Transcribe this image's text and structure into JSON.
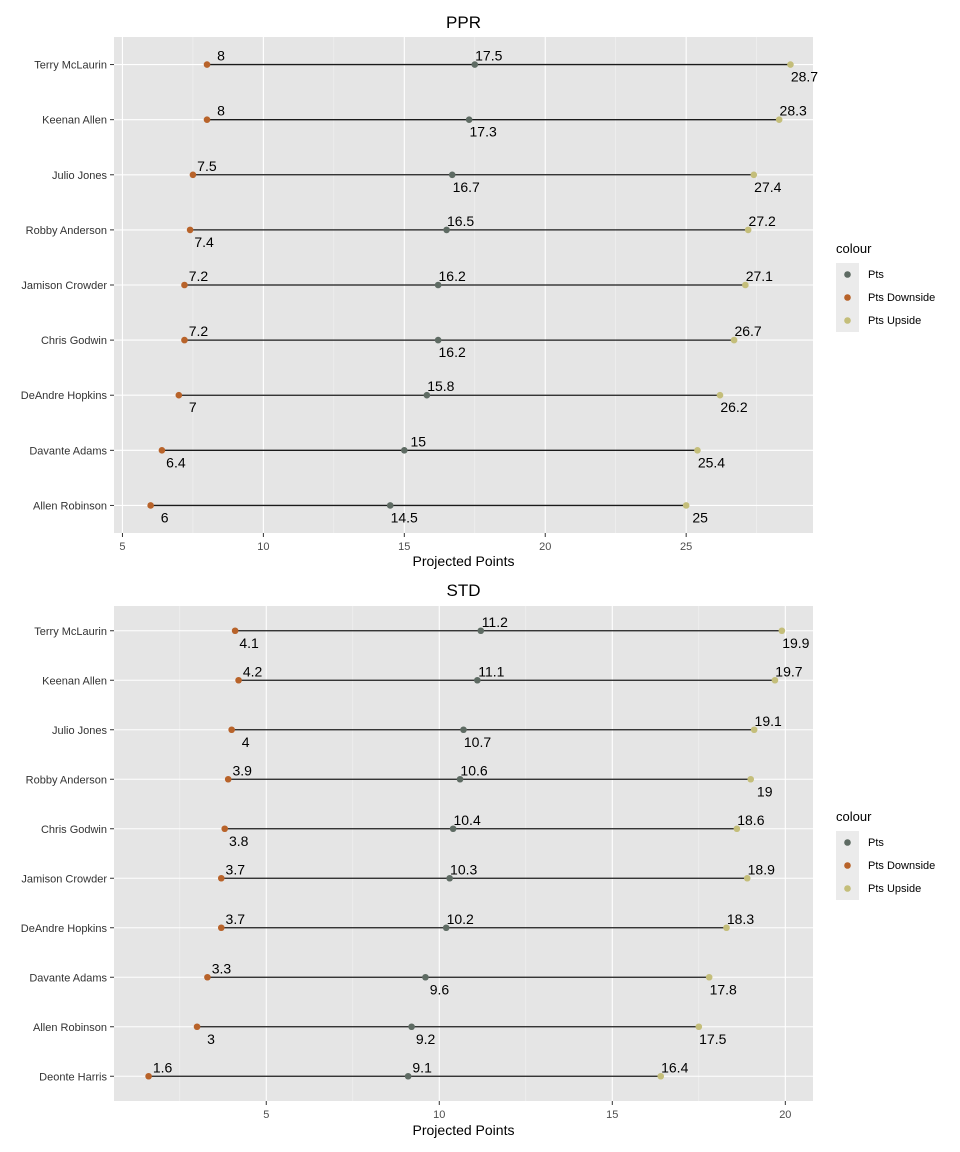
{
  "chart_data": [
    {
      "type": "dumbbell",
      "title": "PPR",
      "xlabel": "Projected Points",
      "ylabel": "",
      "xlim": [
        4.7,
        29.5
      ],
      "xticks": [
        5,
        10,
        15,
        20,
        25
      ],
      "grid": true,
      "legend": {
        "title": "colour",
        "position": "right",
        "items": [
          {
            "name": "Pts",
            "color": "#5e6b63"
          },
          {
            "name": "Pts Downside",
            "color": "#b8632a"
          },
          {
            "name": "Pts Upside",
            "color": "#c4be7a"
          }
        ]
      },
      "categories": [
        "Terry McLaurin",
        "Keenan Allen",
        "Julio Jones",
        "Robby Anderson",
        "Jamison Crowder",
        "Chris Godwin",
        "DeAndre Hopkins",
        "Davante Adams",
        "Allen Robinson"
      ],
      "series": [
        {
          "name": "Pts Downside",
          "values": [
            8,
            8,
            7.5,
            7.4,
            7.2,
            7.2,
            7,
            6.4,
            6
          ],
          "label_pos": [
            "above",
            "above",
            "above",
            "below",
            "above",
            "above",
            "below",
            "below",
            "below"
          ]
        },
        {
          "name": "Pts",
          "values": [
            17.5,
            17.3,
            16.7,
            16.5,
            16.2,
            16.2,
            15.8,
            15,
            14.5
          ],
          "label_pos": [
            "above",
            "below",
            "below",
            "above",
            "above",
            "below",
            "above",
            "above",
            "below"
          ]
        },
        {
          "name": "Pts Upside",
          "values": [
            28.7,
            28.3,
            27.4,
            27.2,
            27.1,
            26.7,
            26.2,
            25.4,
            25
          ],
          "label_pos": [
            "below",
            "above",
            "below",
            "above",
            "above",
            "above",
            "below",
            "below",
            "below"
          ]
        }
      ]
    },
    {
      "type": "dumbbell",
      "title": "STD",
      "xlabel": "Projected Points",
      "ylabel": "",
      "xlim": [
        0.6,
        20.8
      ],
      "xticks": [
        5,
        10,
        15,
        20
      ],
      "grid": true,
      "legend": {
        "title": "colour",
        "position": "right",
        "items": [
          {
            "name": "Pts",
            "color": "#5e6b63"
          },
          {
            "name": "Pts Downside",
            "color": "#b8632a"
          },
          {
            "name": "Pts Upside",
            "color": "#c4be7a"
          }
        ]
      },
      "categories": [
        "Terry McLaurin",
        "Keenan Allen",
        "Julio Jones",
        "Robby Anderson",
        "Chris Godwin",
        "Jamison Crowder",
        "DeAndre Hopkins",
        "Davante Adams",
        "Allen Robinson",
        "Deonte Harris"
      ],
      "series": [
        {
          "name": "Pts Downside",
          "values": [
            4.1,
            4.2,
            4,
            3.9,
            3.8,
            3.7,
            3.7,
            3.3,
            3,
            1.6
          ],
          "label_pos": [
            "below",
            "above",
            "below",
            "above",
            "below",
            "above",
            "above",
            "above",
            "below",
            "above"
          ]
        },
        {
          "name": "Pts",
          "values": [
            11.2,
            11.1,
            10.7,
            10.6,
            10.4,
            10.3,
            10.2,
            9.6,
            9.2,
            9.1
          ],
          "label_pos": [
            "above",
            "above",
            "below",
            "above",
            "above",
            "above",
            "above",
            "below",
            "below",
            "above"
          ]
        },
        {
          "name": "Pts Upside",
          "values": [
            19.9,
            19.7,
            19.1,
            19,
            18.6,
            18.9,
            18.3,
            17.8,
            17.5,
            16.4
          ],
          "label_pos": [
            "below",
            "above",
            "above",
            "below",
            "above",
            "above",
            "above",
            "below",
            "below",
            "above"
          ]
        }
      ]
    }
  ]
}
